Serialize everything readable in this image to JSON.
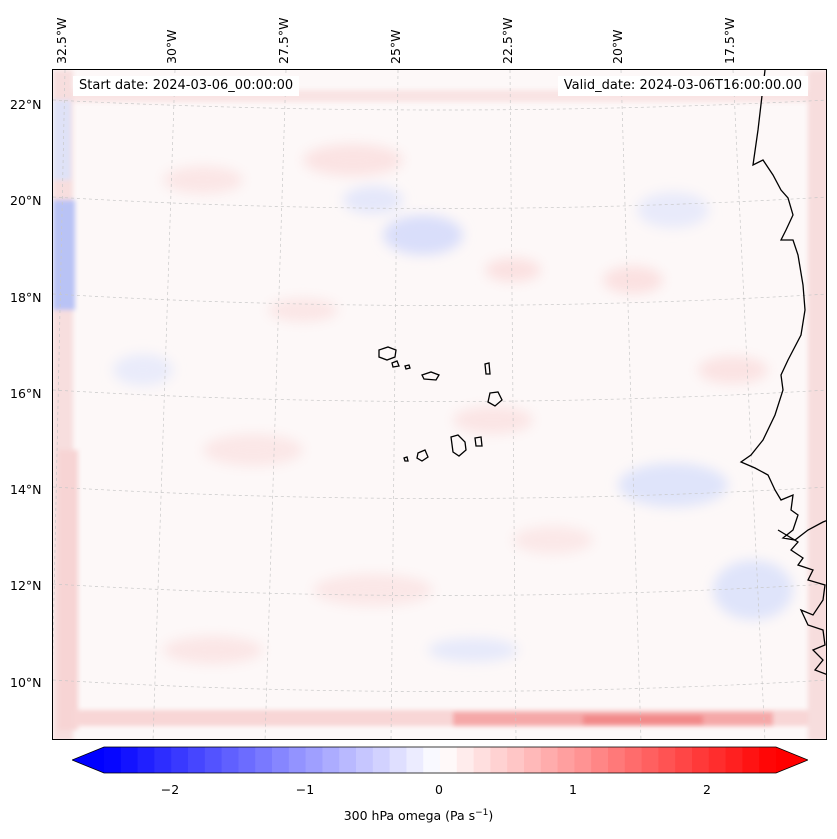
{
  "header": {
    "start_date": "Start date: 2024-03-06_00:00:00",
    "valid_date": "Valid_date: 2024-03-06T16:00:00.00"
  },
  "axes": {
    "lon_labels": [
      "32.5°W",
      "30°W",
      "27.5°W",
      "25°W",
      "22.5°W",
      "20°W",
      "17.5°W"
    ],
    "lat_labels": [
      "22°N",
      "20°N",
      "18°N",
      "16°N",
      "14°N",
      "12°N",
      "10°N"
    ]
  },
  "colorbar": {
    "ticks": [
      "−2",
      "−1",
      "0",
      "1",
      "2"
    ],
    "caption_prefix": "300 hPa omega (Pa s",
    "caption_exp": "−1",
    "caption_suffix": ")",
    "range": [
      -2.6,
      2.6
    ],
    "neg_color": "#0000ff",
    "pos_color": "#ff0000",
    "mid_color": "#ffffff"
  },
  "map": {
    "field": "300 hPa omega",
    "coastline_color": "#000000",
    "gridline_color": "#bbbbbb",
    "features": [
      "Cape Verde islands",
      "West African coast"
    ]
  }
}
